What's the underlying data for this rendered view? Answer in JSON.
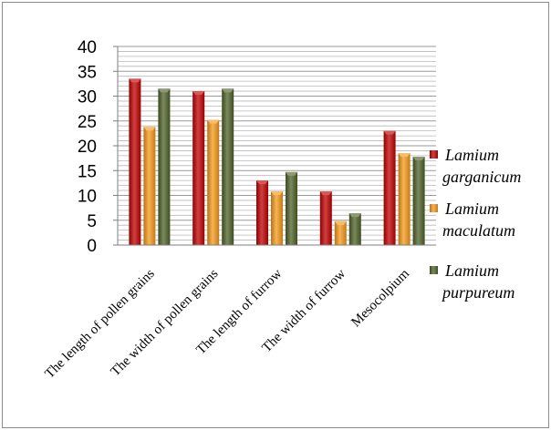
{
  "chart_data": {
    "type": "bar",
    "categories": [
      "The length of pollen grains",
      "The width of pollen grains",
      "The length of furrow",
      "The width of furrow",
      "Mesocolpium"
    ],
    "series": [
      {
        "name": "Lamium garganicum",
        "color": "#c00000",
        "values": [
          33.5,
          31.0,
          13.0,
          10.8,
          23.0
        ]
      },
      {
        "name": "Lamium maculatum",
        "color": "#f59a1a",
        "values": [
          23.8,
          25.2,
          10.8,
          4.8,
          18.5
        ]
      },
      {
        "name": "Lamium purpureum",
        "color": "#4f6228",
        "values": [
          31.5,
          31.5,
          14.7,
          6.4,
          17.8
        ]
      }
    ],
    "legend_labels": [
      [
        "Lamium",
        "garganicum"
      ],
      [
        "Lamium",
        "maculatum"
      ],
      [
        "Lamium",
        "purpureum"
      ]
    ],
    "ylim": [
      0,
      40
    ],
    "yticks": [
      0,
      5,
      10,
      15,
      20,
      25,
      30,
      35,
      40
    ],
    "ytick_labels": [
      "0",
      "5",
      "10",
      "15",
      "20",
      "25",
      "30",
      "35",
      "40"
    ],
    "grid": true,
    "legend_position": "right",
    "title": "",
    "xlabel": "",
    "ylabel": ""
  }
}
